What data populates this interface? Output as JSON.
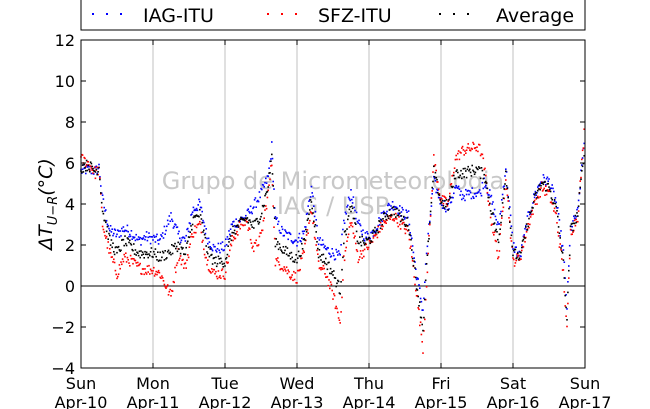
{
  "watermark": {
    "line1": "Grupo de Micrometeorologia",
    "line2": "IAG / USP"
  },
  "colors": {
    "IAG-ITU": "#0000ff",
    "SFZ-ITU": "#ff0000",
    "Average": "#000000",
    "grid": "#c0c0c0",
    "watermark": "#c8c8c8"
  },
  "chart_data": {
    "type": "scatter",
    "title": "",
    "xlabel": "",
    "ylabel": "ΔT_{U-R}(°C)",
    "ylabel_text": "ΔT",
    "ylabel_sub": "U−R",
    "ylabel_unit": "(°C)",
    "ylim": [
      -4,
      12
    ],
    "yticks": [
      -4,
      -2,
      0,
      2,
      4,
      6,
      8,
      10,
      12
    ],
    "ytick_labels": [
      "−4",
      "−2",
      "0",
      "2",
      "4",
      "6",
      "8",
      "10",
      "12"
    ],
    "xlim": [
      "2011-04-10",
      "2011-04-17"
    ],
    "xticks": [
      {
        "day": "Sun",
        "date": "Apr-10"
      },
      {
        "day": "Mon",
        "date": "Apr-11"
      },
      {
        "day": "Tue",
        "date": "Apr-12"
      },
      {
        "day": "Wed",
        "date": "Apr-13"
      },
      {
        "day": "Thu",
        "date": "Apr-14"
      },
      {
        "day": "Fri",
        "date": "Apr-15"
      },
      {
        "day": "Sat",
        "date": "Apr-16"
      },
      {
        "day": "Sun",
        "date": "Apr-17"
      }
    ],
    "grid": "vertical",
    "zero_line": true,
    "legend": {
      "placement": "top",
      "entries": [
        "IAG-ITU",
        "SFZ-ITU",
        "Average"
      ]
    },
    "x_units": "days since Sun Apr-10",
    "series": [
      {
        "name": "IAG-ITU",
        "points": [
          [
            0.0,
            5.6
          ],
          [
            0.1,
            5.7
          ],
          [
            0.2,
            5.6
          ],
          [
            0.25,
            5.8
          ],
          [
            0.3,
            4.2
          ],
          [
            0.4,
            2.7
          ],
          [
            0.5,
            2.5
          ],
          [
            0.6,
            2.8
          ],
          [
            0.7,
            2.6
          ],
          [
            0.8,
            2.2
          ],
          [
            0.9,
            2.4
          ],
          [
            1.0,
            2.3
          ],
          [
            1.1,
            2.2
          ],
          [
            1.25,
            3.4
          ],
          [
            1.35,
            2.5
          ],
          [
            1.45,
            2.2
          ],
          [
            1.55,
            3.7
          ],
          [
            1.65,
            4.0
          ],
          [
            1.75,
            2.4
          ],
          [
            1.85,
            1.8
          ],
          [
            2.0,
            1.9
          ],
          [
            2.1,
            3.0
          ],
          [
            2.2,
            3.2
          ],
          [
            2.3,
            3.4
          ],
          [
            2.4,
            3.9
          ],
          [
            2.5,
            4.5
          ],
          [
            2.6,
            5.3
          ],
          [
            2.65,
            6.8
          ],
          [
            2.7,
            3.2
          ],
          [
            2.8,
            2.6
          ],
          [
            2.9,
            2.4
          ],
          [
            3.0,
            2.2
          ],
          [
            3.1,
            2.6
          ],
          [
            3.2,
            4.8
          ],
          [
            3.3,
            2.2
          ],
          [
            3.4,
            1.8
          ],
          [
            3.5,
            1.6
          ],
          [
            3.6,
            1.4
          ],
          [
            3.65,
            3.1
          ],
          [
            3.75,
            4.6
          ],
          [
            3.85,
            3.0
          ],
          [
            3.95,
            2.4
          ],
          [
            4.05,
            2.6
          ],
          [
            4.15,
            3.2
          ],
          [
            4.25,
            3.8
          ],
          [
            4.35,
            4.0
          ],
          [
            4.45,
            3.6
          ],
          [
            4.55,
            3.4
          ],
          [
            4.65,
            0.8
          ],
          [
            4.75,
            -1.2
          ],
          [
            4.8,
            1.6
          ],
          [
            4.9,
            5.1
          ],
          [
            5.0,
            4.1
          ],
          [
            5.1,
            3.8
          ],
          [
            5.2,
            4.8
          ],
          [
            5.3,
            4.4
          ],
          [
            5.4,
            4.5
          ],
          [
            5.5,
            4.6
          ],
          [
            5.55,
            4.5
          ],
          [
            5.6,
            5.2
          ],
          [
            5.7,
            4.2
          ],
          [
            5.8,
            2.8
          ],
          [
            5.9,
            5.8
          ],
          [
            6.0,
            2.0
          ],
          [
            6.1,
            1.4
          ],
          [
            6.2,
            3.2
          ],
          [
            6.3,
            4.4
          ],
          [
            6.4,
            5.2
          ],
          [
            6.5,
            5.1
          ],
          [
            6.6,
            4.1
          ],
          [
            6.7,
            1.6
          ],
          [
            6.75,
            -1.0
          ],
          [
            6.8,
            2.8
          ],
          [
            6.9,
            3.6
          ],
          [
            7.0,
            7.6
          ]
        ]
      },
      {
        "name": "SFZ-ITU",
        "points": [
          [
            0.0,
            6.2
          ],
          [
            0.1,
            6.0
          ],
          [
            0.2,
            5.5
          ],
          [
            0.25,
            5.7
          ],
          [
            0.3,
            3.0
          ],
          [
            0.4,
            1.6
          ],
          [
            0.5,
            0.6
          ],
          [
            0.6,
            1.4
          ],
          [
            0.7,
            1.2
          ],
          [
            0.8,
            0.9
          ],
          [
            0.9,
            0.8
          ],
          [
            1.0,
            0.8
          ],
          [
            1.1,
            0.6
          ],
          [
            1.25,
            -0.5
          ],
          [
            1.35,
            1.6
          ],
          [
            1.45,
            0.9
          ],
          [
            1.55,
            2.6
          ],
          [
            1.65,
            3.0
          ],
          [
            1.75,
            1.2
          ],
          [
            1.85,
            0.6
          ],
          [
            2.0,
            0.6
          ],
          [
            2.1,
            2.2
          ],
          [
            2.2,
            2.9
          ],
          [
            2.3,
            3.2
          ],
          [
            2.4,
            1.8
          ],
          [
            2.5,
            2.4
          ],
          [
            2.6,
            4.5
          ],
          [
            2.65,
            6.0
          ],
          [
            2.7,
            1.2
          ],
          [
            2.8,
            1.0
          ],
          [
            2.9,
            0.6
          ],
          [
            3.0,
            0.4
          ],
          [
            3.1,
            1.6
          ],
          [
            3.2,
            3.8
          ],
          [
            3.3,
            1.0
          ],
          [
            3.4,
            0.6
          ],
          [
            3.5,
            -0.4
          ],
          [
            3.6,
            -1.8
          ],
          [
            3.65,
            1.2
          ],
          [
            3.75,
            3.2
          ],
          [
            3.85,
            1.4
          ],
          [
            3.95,
            1.8
          ],
          [
            4.05,
            2.2
          ],
          [
            4.15,
            2.8
          ],
          [
            4.25,
            3.2
          ],
          [
            4.35,
            3.4
          ],
          [
            4.45,
            3.0
          ],
          [
            4.55,
            2.6
          ],
          [
            4.65,
            0.0
          ],
          [
            4.75,
            -3.0
          ],
          [
            4.8,
            0.2
          ],
          [
            4.9,
            6.2
          ],
          [
            5.0,
            4.2
          ],
          [
            5.1,
            4.0
          ],
          [
            5.2,
            6.2
          ],
          [
            5.3,
            6.6
          ],
          [
            5.4,
            6.7
          ],
          [
            5.5,
            6.8
          ],
          [
            5.55,
            6.6
          ],
          [
            5.6,
            5.8
          ],
          [
            5.7,
            3.2
          ],
          [
            5.8,
            1.4
          ],
          [
            5.9,
            5.4
          ],
          [
            6.0,
            1.2
          ],
          [
            6.1,
            1.4
          ],
          [
            6.2,
            2.8
          ],
          [
            6.3,
            4.0
          ],
          [
            6.4,
            4.8
          ],
          [
            6.5,
            4.5
          ],
          [
            6.6,
            3.4
          ],
          [
            6.7,
            0.6
          ],
          [
            6.75,
            -2.2
          ],
          [
            6.8,
            2.6
          ],
          [
            6.9,
            3.4
          ],
          [
            7.0,
            8.0
          ]
        ]
      },
      {
        "name": "Average",
        "points": [
          [
            0.0,
            5.8
          ],
          [
            0.1,
            5.9
          ],
          [
            0.2,
            5.6
          ],
          [
            0.25,
            5.8
          ],
          [
            0.3,
            3.7
          ],
          [
            0.4,
            2.2
          ],
          [
            0.5,
            1.6
          ],
          [
            0.6,
            2.2
          ],
          [
            0.7,
            1.9
          ],
          [
            0.8,
            1.6
          ],
          [
            0.9,
            1.6
          ],
          [
            1.0,
            1.6
          ],
          [
            1.1,
            1.4
          ],
          [
            1.25,
            1.7
          ],
          [
            1.35,
            2.0
          ],
          [
            1.45,
            1.5
          ],
          [
            1.55,
            3.2
          ],
          [
            1.65,
            3.5
          ],
          [
            1.75,
            1.8
          ],
          [
            1.85,
            1.2
          ],
          [
            2.0,
            1.2
          ],
          [
            2.1,
            2.6
          ],
          [
            2.2,
            3.0
          ],
          [
            2.3,
            3.3
          ],
          [
            2.4,
            2.9
          ],
          [
            2.5,
            3.5
          ],
          [
            2.6,
            4.9
          ],
          [
            2.65,
            6.4
          ],
          [
            2.7,
            2.2
          ],
          [
            2.8,
            1.8
          ],
          [
            2.9,
            1.5
          ],
          [
            3.0,
            1.3
          ],
          [
            3.1,
            2.1
          ],
          [
            3.2,
            4.3
          ],
          [
            3.3,
            1.6
          ],
          [
            3.4,
            1.2
          ],
          [
            3.5,
            0.6
          ],
          [
            3.6,
            -0.2
          ],
          [
            3.65,
            2.2
          ],
          [
            3.75,
            3.9
          ],
          [
            3.85,
            2.2
          ],
          [
            3.95,
            2.1
          ],
          [
            4.05,
            2.4
          ],
          [
            4.15,
            3.0
          ],
          [
            4.25,
            3.5
          ],
          [
            4.35,
            3.7
          ],
          [
            4.45,
            3.3
          ],
          [
            4.55,
            3.0
          ],
          [
            4.65,
            0.4
          ],
          [
            4.75,
            -2.1
          ],
          [
            4.8,
            0.9
          ],
          [
            4.9,
            5.6
          ],
          [
            5.0,
            4.1
          ],
          [
            5.1,
            3.9
          ],
          [
            5.2,
            5.5
          ],
          [
            5.3,
            5.5
          ],
          [
            5.4,
            5.6
          ],
          [
            5.5,
            5.7
          ],
          [
            5.55,
            5.5
          ],
          [
            5.6,
            5.5
          ],
          [
            5.7,
            3.7
          ],
          [
            5.8,
            2.1
          ],
          [
            5.9,
            5.6
          ],
          [
            6.0,
            1.6
          ],
          [
            6.1,
            1.4
          ],
          [
            6.2,
            3.0
          ],
          [
            6.3,
            4.2
          ],
          [
            6.4,
            5.0
          ],
          [
            6.5,
            4.8
          ],
          [
            6.6,
            3.8
          ],
          [
            6.7,
            1.1
          ],
          [
            6.75,
            -1.6
          ],
          [
            6.8,
            2.7
          ],
          [
            6.9,
            3.5
          ],
          [
            7.0,
            7.0
          ]
        ]
      }
    ]
  }
}
